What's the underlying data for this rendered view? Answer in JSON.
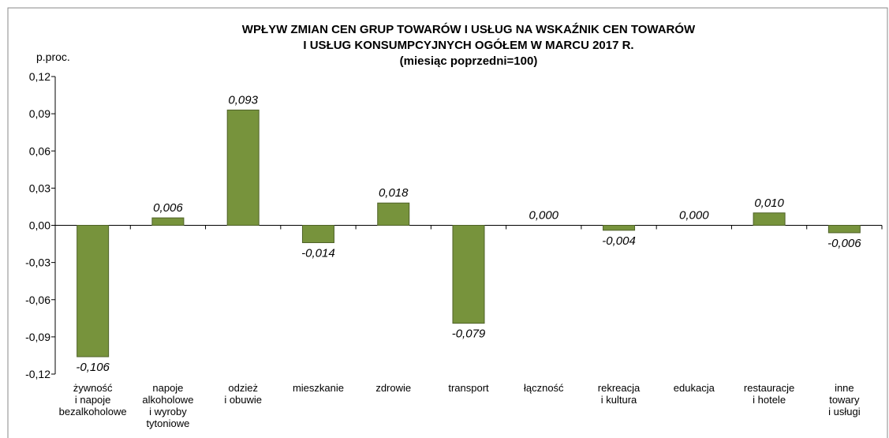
{
  "chart_data": {
    "type": "bar",
    "title": [
      "WPŁYW ZMIAN CEN GRUP TOWARÓW I USŁUG NA WSKAŹNIK CEN TOWARÓW",
      "I USŁUG KONSUMPCYJNYCH OGÓŁEM W MARCU 2017 R."
    ],
    "subtitle": "(miesiąc poprzedni=100)",
    "y_label": "p.proc.",
    "categories": [
      "żywność\ni napoje\nbezalkoholowe",
      "napoje\nalkoholowe\ni wyroby\ntytoniowe",
      "odzież\ni obuwie",
      "mieszkanie",
      "zdrowie",
      "transport",
      "łączność",
      "rekreacja\ni kultura",
      "edukacja",
      "restauracje\ni hotele",
      "inne\ntowary\ni usługi"
    ],
    "values": [
      -0.106,
      0.006,
      0.093,
      -0.014,
      0.018,
      -0.079,
      0.0,
      -0.004,
      0.0,
      0.01,
      -0.006
    ],
    "value_labels": [
      "-0,106",
      "0,006",
      "0,093",
      "-0,014",
      "0,018",
      "-0,079",
      "0,000",
      "-0,004",
      "0,000",
      "0,010",
      "-0,006"
    ],
    "color": "#77933c",
    "ylim": [
      -0.12,
      0.12
    ],
    "yticks": [
      {
        "value": -0.12,
        "label": "-0,12"
      },
      {
        "value": -0.09,
        "label": "-0,09"
      },
      {
        "value": -0.06,
        "label": "-0,06"
      },
      {
        "value": -0.03,
        "label": "-0,03"
      },
      {
        "value": 0,
        "label": "0,00"
      },
      {
        "value": 0.03,
        "label": "0,03"
      },
      {
        "value": 0.06,
        "label": "0,06"
      },
      {
        "value": 0.09,
        "label": "0,09"
      },
      {
        "value": 0.12,
        "label": "0,12"
      }
    ],
    "grid": false
  }
}
